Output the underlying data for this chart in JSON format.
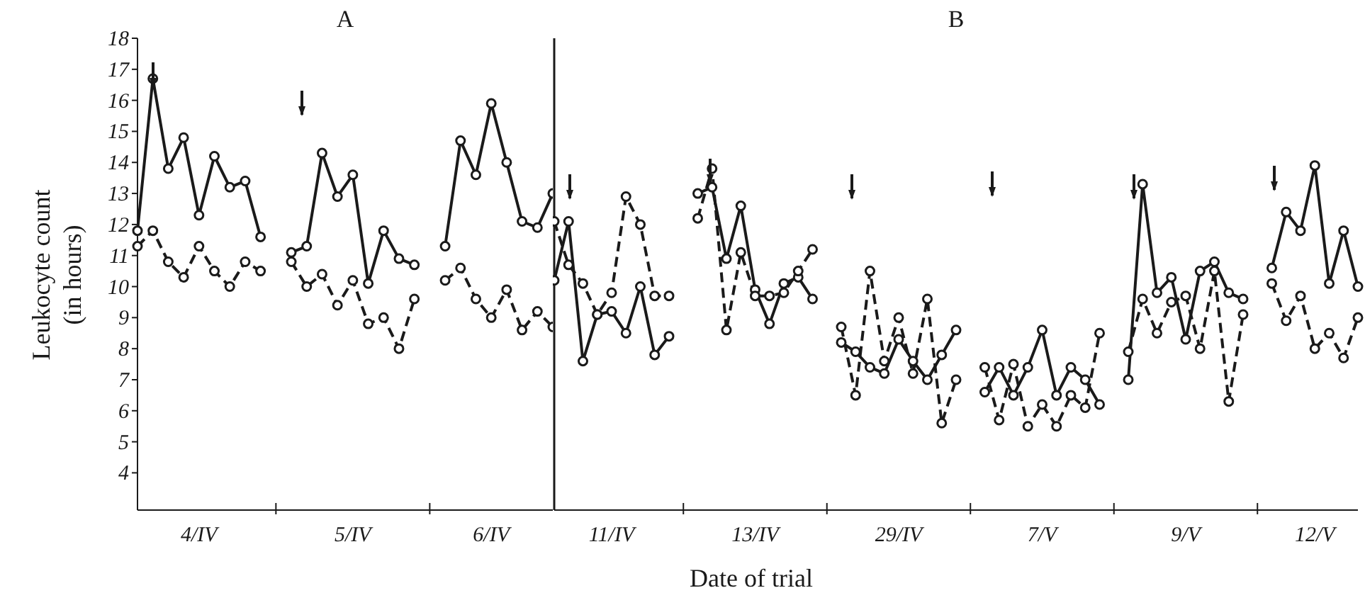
{
  "chart_data": [
    {
      "type": "line",
      "title": "A",
      "ylabel": "Leukocyte count\n(in hours)",
      "categories": [
        null,
        null,
        null,
        null,
        "4/IV",
        null,
        null,
        null,
        null,
        null,
        null,
        null,
        null,
        null,
        "5/IV",
        null,
        null,
        null,
        null,
        null,
        null,
        null,
        null,
        "6/IV",
        null,
        null,
        null,
        null
      ],
      "series": [
        {
          "color": "#1a1a1a",
          "line_style": "solid",
          "values": [
            11.8,
            16.7,
            13.8,
            14.8,
            12.3,
            14.2,
            13.2,
            13.4,
            11.6,
            null,
            11.1,
            11.3,
            14.3,
            12.9,
            13.6,
            10.1,
            11.8,
            10.9,
            10.7,
            null,
            11.3,
            14.7,
            13.6,
            15.9,
            14.0,
            12.1,
            11.9,
            13.0
          ]
        },
        {
          "color": "#1a1a1a",
          "line_style": "dashed",
          "values": [
            11.3,
            11.8,
            10.8,
            10.3,
            11.3,
            10.5,
            10.0,
            10.8,
            10.5,
            null,
            10.8,
            10.0,
            10.4,
            9.4,
            10.2,
            8.8,
            9.0,
            8.0,
            9.6,
            null,
            10.2,
            10.6,
            9.6,
            9.0,
            9.9,
            8.6,
            9.2,
            8.7
          ]
        }
      ],
      "ylim": [
        2.8,
        18
      ],
      "yticks": [
        4,
        5,
        6,
        7,
        8,
        9,
        10,
        11,
        12,
        13,
        14,
        15,
        16,
        17,
        18
      ],
      "marker": "circle",
      "grid": false,
      "legend": false
    },
    {
      "type": "line",
      "title": "B",
      "xlabel": "Date of trial",
      "categories": [
        null,
        null,
        null,
        null,
        "11/IV",
        null,
        null,
        null,
        null,
        null,
        null,
        null,
        null,
        null,
        "13/IV",
        null,
        null,
        null,
        null,
        null,
        null,
        null,
        null,
        null,
        "29/IV",
        null,
        null,
        null,
        null,
        null,
        null,
        null,
        null,
        null,
        "7/V",
        null,
        null,
        null,
        null,
        null,
        null,
        null,
        null,
        null,
        "9/V",
        null,
        null,
        null,
        null,
        null,
        null,
        null,
        null,
        "12/V",
        null,
        null,
        null
      ],
      "series": [
        {
          "color": "#1a1a1a",
          "line_style": "solid",
          "values": [
            10.2,
            12.1,
            7.6,
            9.1,
            9.2,
            8.5,
            10.0,
            7.8,
            8.4,
            null,
            13.0,
            13.2,
            10.9,
            12.6,
            9.9,
            8.8,
            10.1,
            10.3,
            9.6,
            null,
            8.2,
            7.9,
            7.4,
            7.2,
            8.3,
            7.6,
            7.0,
            7.8,
            8.6,
            null,
            6.6,
            7.4,
            6.5,
            7.4,
            8.6,
            6.5,
            7.4,
            7.0,
            6.2,
            null,
            7.0,
            13.3,
            9.8,
            10.3,
            8.3,
            10.5,
            10.8,
            9.8,
            9.6,
            null,
            10.6,
            12.4,
            11.8,
            13.9,
            10.1,
            11.8,
            10.0
          ]
        },
        {
          "color": "#1a1a1a",
          "line_style": "dashed",
          "values": [
            12.1,
            10.7,
            10.1,
            9.1,
            9.8,
            12.9,
            12.0,
            9.7,
            9.7,
            null,
            12.2,
            13.8,
            8.6,
            11.1,
            9.7,
            9.7,
            9.8,
            10.5,
            11.2,
            null,
            8.7,
            6.5,
            10.5,
            7.6,
            9.0,
            7.2,
            9.6,
            5.6,
            7.0,
            null,
            7.4,
            5.7,
            7.5,
            5.5,
            6.2,
            5.5,
            6.5,
            6.1,
            8.5,
            null,
            7.9,
            9.6,
            8.5,
            9.5,
            9.7,
            8.0,
            10.5,
            6.3,
            9.1,
            null,
            10.1,
            8.9,
            9.7,
            8.0,
            8.5,
            7.7,
            9.0
          ]
        }
      ],
      "ylim": [
        2.8,
        18
      ],
      "yticks": [
        4,
        5,
        6,
        7,
        8,
        9,
        10,
        11,
        12,
        13,
        14,
        15,
        16,
        17,
        18
      ],
      "tick_labels": "x",
      "marker": "circle",
      "grid": false,
      "legend": false
    }
  ]
}
